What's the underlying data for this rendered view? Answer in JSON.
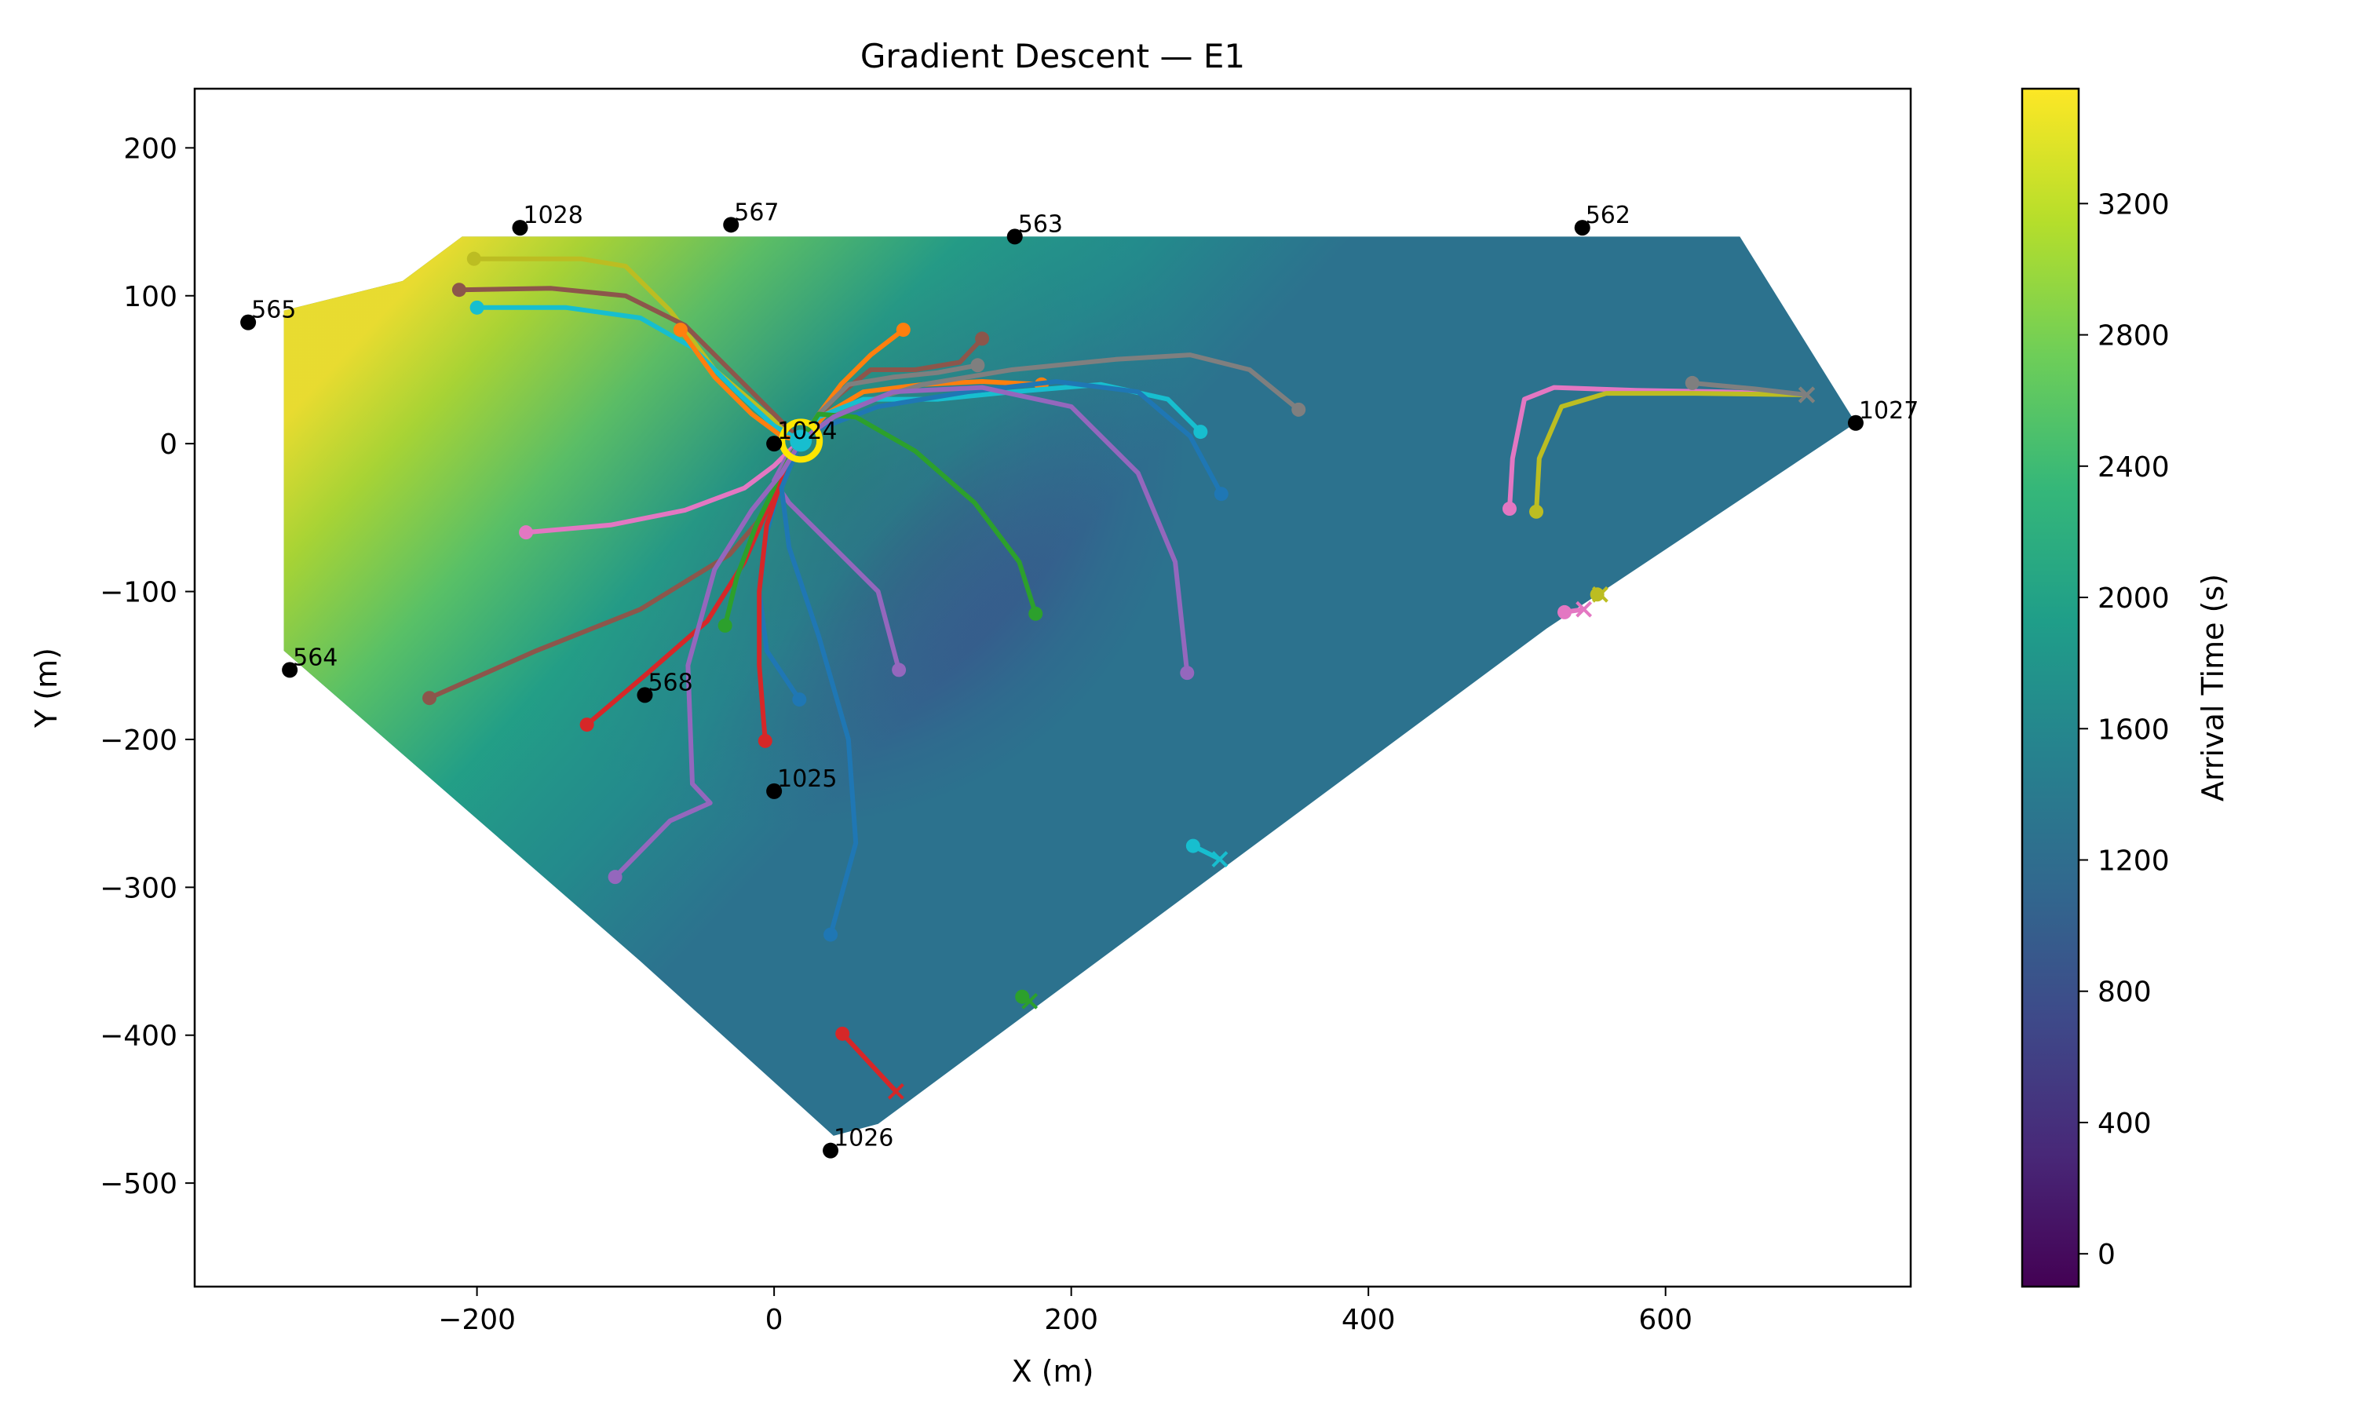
{
  "chart_data": {
    "type": "contour_map",
    "title": "Gradient Descent — E1",
    "xlabel": "X (m)",
    "ylabel": "Y (m)",
    "xlim": [
      -390,
      765
    ],
    "ylim": [
      -570,
      240
    ],
    "xticks": [
      -200,
      0,
      200,
      400,
      600
    ],
    "yticks": [
      200,
      100,
      0,
      -100,
      -200,
      -300,
      -400,
      -500
    ],
    "xtick_labels": [
      "−200",
      "0",
      "200",
      "400",
      "600"
    ],
    "ytick_labels": [
      "200",
      "100",
      "0",
      "−100",
      "−200",
      "−300",
      "−400",
      "−500"
    ],
    "colorbar": {
      "label": "Arrival Time (s)",
      "colormap": "viridis",
      "range": [
        -100,
        3550
      ],
      "ticks": [
        0,
        400,
        800,
        1200,
        1600,
        2000,
        2400,
        2800,
        3200
      ],
      "tick_labels": [
        "0",
        "400",
        "800",
        "1200",
        "1600",
        "2000",
        "2400",
        "2800",
        "3200"
      ]
    },
    "source": {
      "x": 18,
      "y": 2
    },
    "domain_polygon": [
      [
        -210,
        140
      ],
      [
        650,
        140
      ],
      [
        728,
        14
      ],
      [
        520,
        -125
      ],
      [
        70,
        -460
      ],
      [
        40,
        -468
      ],
      [
        -90,
        -350
      ],
      [
        -330,
        -140
      ],
      [
        -330,
        90
      ],
      [
        -250,
        110
      ]
    ],
    "stations": [
      {
        "label": "1028",
        "x": -171,
        "y": 146
      },
      {
        "label": "567",
        "x": -29,
        "y": 148
      },
      {
        "label": "563",
        "x": 162,
        "y": 140
      },
      {
        "label": "562",
        "x": 544,
        "y": 146
      },
      {
        "label": "565",
        "x": -354,
        "y": 82
      },
      {
        "label": "1024",
        "x": 0,
        "y": 0
      },
      {
        "label": "1027",
        "x": 728,
        "y": 14
      },
      {
        "label": "564",
        "x": -326,
        "y": -153
      },
      {
        "label": "568",
        "x": -87,
        "y": -170
      },
      {
        "label": "1025",
        "x": 0,
        "y": -235
      },
      {
        "label": "1026",
        "x": 38,
        "y": -478
      }
    ],
    "series": [
      {
        "color": "#bcbd22",
        "start": [
          -202,
          125
        ],
        "points": [
          [
            -202,
            125
          ],
          [
            -130,
            125
          ],
          [
            -100,
            120
          ],
          [
            -70,
            90
          ],
          [
            -40,
            50
          ],
          [
            -5,
            20
          ],
          [
            18,
            2
          ]
        ]
      },
      {
        "color": "#8c564b",
        "start": [
          -212,
          104
        ],
        "points": [
          [
            -212,
            104
          ],
          [
            -150,
            105
          ],
          [
            -100,
            100
          ],
          [
            -60,
            80
          ],
          [
            -30,
            50
          ],
          [
            0,
            20
          ],
          [
            18,
            2
          ]
        ]
      },
      {
        "color": "#17becf",
        "start": [
          -200,
          92
        ],
        "points": [
          [
            -200,
            92
          ],
          [
            -140,
            92
          ],
          [
            -90,
            85
          ],
          [
            -55,
            65
          ],
          [
            -25,
            35
          ],
          [
            0,
            12
          ],
          [
            18,
            2
          ]
        ]
      },
      {
        "color": "#ff7f0e",
        "start": [
          -63,
          77
        ],
        "points": [
          [
            -63,
            77
          ],
          [
            -40,
            45
          ],
          [
            -15,
            20
          ],
          [
            5,
            5
          ],
          [
            18,
            2
          ]
        ]
      },
      {
        "color": "#ff7f0e",
        "start": [
          87,
          77
        ],
        "points": [
          [
            87,
            77
          ],
          [
            65,
            60
          ],
          [
            45,
            40
          ],
          [
            30,
            20
          ],
          [
            18,
            2
          ]
        ]
      },
      {
        "color": "#8c564b",
        "start": [
          140,
          71
        ],
        "points": [
          [
            140,
            71
          ],
          [
            125,
            55
          ],
          [
            95,
            50
          ],
          [
            65,
            50
          ],
          [
            40,
            30
          ],
          [
            18,
            2
          ]
        ]
      },
      {
        "color": "#7f7f7f",
        "start": [
          137,
          53
        ],
        "points": [
          [
            137,
            53
          ],
          [
            110,
            48
          ],
          [
            80,
            45
          ],
          [
            50,
            40
          ],
          [
            30,
            20
          ],
          [
            18,
            2
          ]
        ]
      },
      {
        "color": "#ff7f0e",
        "start": [
          180,
          40
        ],
        "points": [
          [
            180,
            40
          ],
          [
            140,
            42
          ],
          [
            100,
            40
          ],
          [
            60,
            35
          ],
          [
            35,
            20
          ],
          [
            18,
            2
          ]
        ]
      },
      {
        "color": "#7f7f7f",
        "start": [
          353,
          23
        ],
        "points": [
          [
            353,
            23
          ],
          [
            320,
            50
          ],
          [
            280,
            60
          ],
          [
            230,
            57
          ],
          [
            160,
            50
          ],
          [
            100,
            40
          ],
          [
            50,
            25
          ],
          [
            18,
            2
          ]
        ]
      },
      {
        "color": "#17becf",
        "start": [
          287,
          8
        ],
        "points": [
          [
            287,
            8
          ],
          [
            265,
            30
          ],
          [
            220,
            40
          ],
          [
            160,
            35
          ],
          [
            110,
            30
          ],
          [
            60,
            30
          ],
          [
            30,
            18
          ],
          [
            18,
            2
          ]
        ]
      },
      {
        "color": "#1f77b4",
        "start": [
          301,
          -34
        ],
        "points": [
          [
            301,
            -34
          ],
          [
            280,
            5
          ],
          [
            245,
            35
          ],
          [
            190,
            42
          ],
          [
            130,
            35
          ],
          [
            70,
            25
          ],
          [
            30,
            10
          ],
          [
            18,
            2
          ]
        ]
      },
      {
        "color": "#2ca02c",
        "start": [
          176,
          -115
        ],
        "points": [
          [
            176,
            -115
          ],
          [
            165,
            -80
          ],
          [
            135,
            -40
          ],
          [
            95,
            -5
          ],
          [
            55,
            18
          ],
          [
            30,
            20
          ],
          [
            18,
            2
          ]
        ]
      },
      {
        "color": "#9467bd",
        "start": [
          278,
          -155
        ],
        "points": [
          [
            278,
            -155
          ],
          [
            270,
            -80
          ],
          [
            245,
            -20
          ],
          [
            200,
            25
          ],
          [
            140,
            38
          ],
          [
            80,
            35
          ],
          [
            40,
            18
          ],
          [
            18,
            2
          ]
        ]
      },
      {
        "color": "#e377c2",
        "start": [
          -167,
          -60
        ],
        "points": [
          [
            -167,
            -60
          ],
          [
            -110,
            -55
          ],
          [
            -60,
            -45
          ],
          [
            -20,
            -30
          ],
          [
            0,
            -15
          ],
          [
            10,
            -5
          ],
          [
            18,
            2
          ]
        ]
      },
      {
        "color": "#9467bd",
        "start": [
          84,
          -153
        ],
        "points": [
          [
            84,
            -153
          ],
          [
            70,
            -100
          ],
          [
            40,
            -70
          ],
          [
            10,
            -40
          ],
          [
            0,
            -25
          ],
          [
            8,
            -10
          ],
          [
            18,
            2
          ]
        ]
      },
      {
        "color": "#8c564b",
        "start": [
          -232,
          -172
        ],
        "points": [
          [
            -232,
            -172
          ],
          [
            -160,
            -140
          ],
          [
            -90,
            -112
          ],
          [
            -30,
            -75
          ],
          [
            0,
            -40
          ],
          [
            10,
            -15
          ],
          [
            18,
            2
          ]
        ]
      },
      {
        "color": "#d62728",
        "start": [
          -126,
          -190
        ],
        "points": [
          [
            -126,
            -190
          ],
          [
            -85,
            -155
          ],
          [
            -45,
            -120
          ],
          [
            -20,
            -80
          ],
          [
            -5,
            -45
          ],
          [
            8,
            -15
          ],
          [
            18,
            2
          ]
        ]
      },
      {
        "color": "#2ca02c",
        "start": [
          -33,
          -123
        ],
        "points": [
          [
            -33,
            -123
          ],
          [
            -25,
            -90
          ],
          [
            -12,
            -55
          ],
          [
            0,
            -30
          ],
          [
            10,
            -10
          ],
          [
            18,
            2
          ]
        ]
      },
      {
        "color": "#1f77b4",
        "start": [
          17,
          -173
        ],
        "points": [
          [
            17,
            -173
          ],
          [
            -5,
            -140
          ],
          [
            -10,
            -100
          ],
          [
            -5,
            -60
          ],
          [
            5,
            -25
          ],
          [
            18,
            2
          ]
        ]
      },
      {
        "color": "#d62728",
        "start": [
          -6,
          -201
        ],
        "points": [
          [
            -6,
            -201
          ],
          [
            -10,
            -150
          ],
          [
            -10,
            -100
          ],
          [
            -5,
            -55
          ],
          [
            5,
            -25
          ],
          [
            18,
            2
          ]
        ]
      },
      {
        "color": "#1f77b4",
        "start": [
          38,
          -332
        ],
        "points": [
          [
            38,
            -332
          ],
          [
            55,
            -270
          ],
          [
            50,
            -200
          ],
          [
            30,
            -130
          ],
          [
            10,
            -70
          ],
          [
            5,
            -30
          ],
          [
            18,
            2
          ]
        ]
      },
      {
        "color": "#9467bd",
        "start": [
          -107,
          -293
        ],
        "points": [
          [
            -107,
            -293
          ],
          [
            -70,
            -255
          ],
          [
            -43,
            -243
          ],
          [
            -55,
            -230
          ],
          [
            -58,
            -150
          ],
          [
            -40,
            -85
          ],
          [
            -15,
            -45
          ],
          [
            5,
            -20
          ],
          [
            18,
            2
          ]
        ]
      },
      {
        "color": "#e377c2",
        "start": [
          495,
          -44
        ],
        "points": [
          [
            495,
            -44
          ],
          [
            497,
            -10
          ],
          [
            505,
            30
          ],
          [
            525,
            38
          ],
          [
            580,
            36
          ],
          [
            640,
            35
          ],
          [
            695,
            33
          ]
        ],
        "end": [
          695,
          33
        ]
      },
      {
        "color": "#bcbd22",
        "start": [
          513,
          -46
        ],
        "points": [
          [
            513,
            -46
          ],
          [
            515,
            -10
          ],
          [
            530,
            25
          ],
          [
            560,
            34
          ],
          [
            620,
            34
          ],
          [
            695,
            33
          ]
        ],
        "end": [
          695,
          33
        ]
      },
      {
        "color": "#7f7f7f",
        "start": [
          618,
          41
        ],
        "points": [
          [
            618,
            41
          ],
          [
            660,
            37
          ],
          [
            695,
            33
          ]
        ],
        "end": [
          695,
          33
        ]
      },
      {
        "color": "#bcbd22",
        "start": [
          554,
          -102
        ],
        "points": [
          [
            554,
            -102
          ],
          [
            556,
            -102
          ]
        ],
        "end": [
          556,
          -102
        ]
      },
      {
        "color": "#e377c2",
        "start": [
          532,
          -114
        ],
        "points": [
          [
            532,
            -114
          ],
          [
            545,
            -112
          ]
        ],
        "end": [
          545,
          -112
        ]
      },
      {
        "color": "#17becf",
        "start": [
          282,
          -272
        ],
        "points": [
          [
            282,
            -272
          ],
          [
            300,
            -281
          ]
        ],
        "end": [
          300,
          -281
        ]
      },
      {
        "color": "#2ca02c",
        "start": [
          167,
          -374
        ],
        "points": [
          [
            167,
            -374
          ],
          [
            172,
            -377
          ]
        ],
        "end": [
          172,
          -377
        ]
      },
      {
        "color": "#d62728",
        "start": [
          46,
          -399
        ],
        "points": [
          [
            46,
            -399
          ],
          [
            82,
            -438
          ]
        ],
        "end": [
          82,
          -438
        ]
      }
    ]
  }
}
